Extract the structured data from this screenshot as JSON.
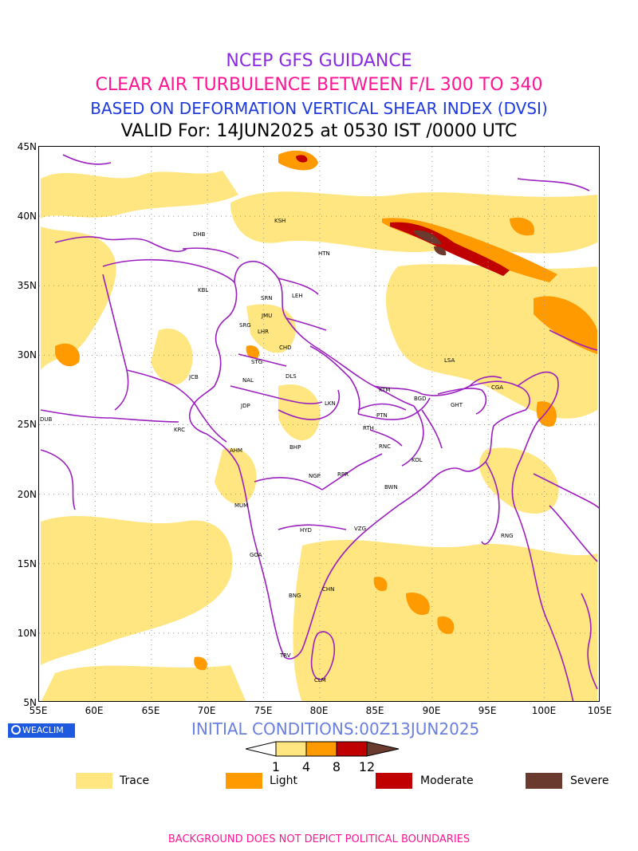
{
  "titles": {
    "line1": "NCEP GFS GUIDANCE",
    "line2": "CLEAR AIR TURBULENCE BETWEEN F/L 300 TO 340",
    "line3": "BASED ON DEFORMATION VERTICAL SHEAR INDEX (DVSI)",
    "line4": "VALID For: 14JUN2025 at 0530 IST /0000 UTC"
  },
  "axes": {
    "lat_labels": [
      "45N",
      "40N",
      "35N",
      "30N",
      "25N",
      "20N",
      "15N",
      "10N",
      "5N"
    ],
    "lon_labels": [
      "55E",
      "60E",
      "65E",
      "70E",
      "75E",
      "80E",
      "85E",
      "90E",
      "95E",
      "100E",
      "105E"
    ],
    "lat_range": [
      5,
      45
    ],
    "lon_range": [
      55,
      105
    ],
    "grid": "dotted"
  },
  "stations": [
    "KSH",
    "DHB",
    "HTN",
    "KBL",
    "SRN",
    "LEH",
    "JMU",
    "SRG",
    "LHR",
    "CHD",
    "LSA",
    "STG",
    "DLS",
    "JCB",
    "NAL",
    "KTM",
    "CGA",
    "BGD",
    "JDP",
    "LKN",
    "GHT",
    "PTN",
    "DUB",
    "KRC",
    "RTH",
    "AHM",
    "BHP",
    "RNC",
    "KOL",
    "NGP",
    "RPR",
    "BWN",
    "MUM",
    "HYD",
    "VZG",
    "RNG",
    "GOA",
    "CHN",
    "BNG",
    "TRV",
    "CLM"
  ],
  "logo": "WEACLIM",
  "initial_conditions": "INITIAL CONDITIONS:00Z13JUN2025",
  "colorbar": {
    "ticks": [
      "1",
      "4",
      "8",
      "12"
    ],
    "colors": [
      "#ffe680",
      "#ff9a00",
      "#c00000",
      "#6b3a2e"
    ]
  },
  "legend": [
    {
      "label": "Trace",
      "color": "#ffe680"
    },
    {
      "label": "Light",
      "color": "#ff9a00"
    },
    {
      "label": "Moderate",
      "color": "#c00000"
    },
    {
      "label": "Severe",
      "color": "#6b3a2e"
    }
  ],
  "footer": "BACKGROUND DOES NOT DEPICT POLITICAL BOUNDARIES"
}
